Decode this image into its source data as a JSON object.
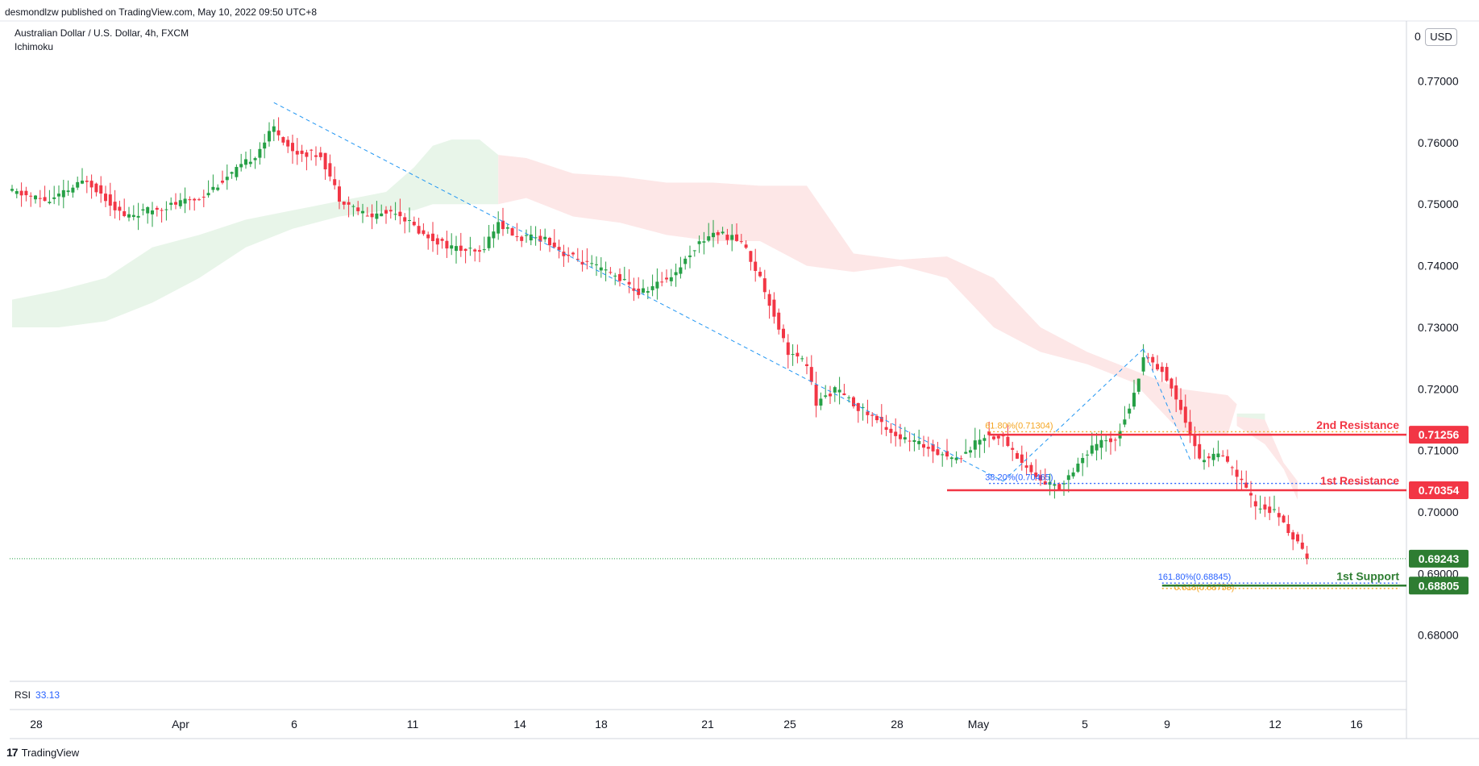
{
  "header": {
    "published_by": "desmondlzw published on TradingView.com, May 10, 2022 09:50 UTC+8"
  },
  "legend": {
    "symbol": "Australian Dollar / U.S. Dollar, 4h, FXCM",
    "indicator": "Ichimoku"
  },
  "currency_button": "USD",
  "top_axis_clip": "0",
  "rsi": {
    "label": "RSI",
    "value": "33.13"
  },
  "brand": {
    "label": "TradingView"
  },
  "colors": {
    "bull": "#26a046",
    "bear": "#f23645",
    "resistance": "#f23645",
    "support": "#2e7d32",
    "fib_blue": "#2962ff",
    "fib_orange": "#f5a623",
    "cloud_bull": "#e8f5e9",
    "cloud_bear": "#fde7e7",
    "trend": "#2196f3"
  },
  "chart_data": {
    "type": "candlestick",
    "title": "Australian Dollar / U.S. Dollar, 4h, FXCM",
    "ylim": [
      0.6725,
      0.7795
    ],
    "y_ticks": [
      "0.77000",
      "0.76000",
      "0.75000",
      "0.74000",
      "0.73000",
      "0.72000",
      "0.71000",
      "0.70000",
      "0.69000",
      "0.68000"
    ],
    "x_ticks": [
      "28",
      "Apr",
      "6",
      "11",
      "14",
      "18",
      "21",
      "25",
      "28",
      "May",
      "5",
      "9",
      "12",
      "16"
    ],
    "price_path": [
      [
        0,
        0.752
      ],
      [
        8,
        0.7505
      ],
      [
        16,
        0.754
      ],
      [
        24,
        0.748
      ],
      [
        32,
        0.7495
      ],
      [
        40,
        0.751
      ],
      [
        48,
        0.7555
      ],
      [
        52,
        0.758
      ],
      [
        56,
        0.7625
      ],
      [
        60,
        0.7585
      ],
      [
        66,
        0.758
      ],
      [
        70,
        0.751
      ],
      [
        76,
        0.748
      ],
      [
        82,
        0.749
      ],
      [
        88,
        0.745
      ],
      [
        94,
        0.743
      ],
      [
        100,
        0.742
      ],
      [
        104,
        0.747
      ],
      [
        108,
        0.7445
      ],
      [
        114,
        0.7445
      ],
      [
        118,
        0.742
      ],
      [
        124,
        0.74
      ],
      [
        130,
        0.738
      ],
      [
        134,
        0.7355
      ],
      [
        138,
        0.737
      ],
      [
        142,
        0.739
      ],
      [
        146,
        0.743
      ],
      [
        150,
        0.7455
      ],
      [
        156,
        0.744
      ],
      [
        160,
        0.738
      ],
      [
        166,
        0.726
      ],
      [
        170,
        0.724
      ],
      [
        172,
        0.7175
      ],
      [
        176,
        0.72
      ],
      [
        180,
        0.7175
      ],
      [
        184,
        0.7155
      ],
      [
        190,
        0.712
      ],
      [
        196,
        0.7105
      ],
      [
        202,
        0.7085
      ],
      [
        208,
        0.7125
      ],
      [
        212,
        0.712
      ],
      [
        216,
        0.708
      ],
      [
        220,
        0.705
      ],
      [
        224,
        0.704
      ],
      [
        228,
        0.708
      ],
      [
        232,
        0.711
      ],
      [
        236,
        0.712
      ],
      [
        240,
        0.719
      ],
      [
        242,
        0.7255
      ],
      [
        246,
        0.723
      ],
      [
        250,
        0.717
      ],
      [
        254,
        0.7085
      ],
      [
        258,
        0.7095
      ],
      [
        262,
        0.706
      ],
      [
        266,
        0.701
      ],
      [
        270,
        0.7
      ],
      [
        274,
        0.696
      ],
      [
        277,
        0.6924
      ]
    ],
    "ichimoku_cloud": {
      "bullish": {
        "x": [
          0,
          10,
          20,
          30,
          40,
          50,
          60,
          70,
          80,
          86,
          90,
          94,
          100,
          104
        ],
        "top": [
          0.7345,
          0.736,
          0.738,
          0.743,
          0.745,
          0.7475,
          0.749,
          0.7505,
          0.752,
          0.756,
          0.7595,
          0.7605,
          0.7605,
          0.758
        ],
        "bottom": [
          0.73,
          0.73,
          0.731,
          0.734,
          0.738,
          0.743,
          0.746,
          0.748,
          0.749,
          0.749,
          0.75,
          0.75,
          0.75,
          0.75
        ]
      },
      "bearish": {
        "x": [
          104,
          110,
          120,
          130,
          140,
          150,
          160,
          170,
          180,
          190,
          200,
          210,
          220,
          230,
          240,
          250,
          260,
          262
        ],
        "top": [
          0.758,
          0.7575,
          0.755,
          0.7545,
          0.7535,
          0.7535,
          0.753,
          0.753,
          0.742,
          0.741,
          0.7415,
          0.738,
          0.73,
          0.726,
          0.723,
          0.72,
          0.719,
          0.7175
        ],
        "bottom": [
          0.75,
          0.751,
          0.748,
          0.747,
          0.745,
          0.744,
          0.744,
          0.74,
          0.739,
          0.74,
          0.738,
          0.73,
          0.726,
          0.724,
          0.721,
          0.713,
          0.7125,
          0.7175
        ]
      },
      "tail_bull": {
        "x": [
          262,
          268
        ],
        "top": [
          0.716,
          0.716
        ],
        "bottom": [
          0.7145,
          0.715
        ]
      },
      "tail_bear": {
        "x": [
          262,
          268,
          272,
          275
        ],
        "top": [
          0.7155,
          0.715,
          0.708,
          0.705
        ],
        "bottom": [
          0.714,
          0.711,
          0.707,
          0.702
        ]
      }
    },
    "trendlines": [
      {
        "from": [
          56,
          0.7665
        ],
        "to": [
          212,
          0.705
        ]
      },
      {
        "from": [
          212,
          0.705
        ],
        "to": [
          242,
          0.7265
        ]
      },
      {
        "from": [
          242,
          0.7265
        ],
        "to": [
          252,
          0.7085
        ]
      }
    ],
    "levels": {
      "resistance_2": {
        "label": "2nd Resistance",
        "value": 0.71256,
        "tag": "0.71256",
        "x_start": 209
      },
      "resistance_1": {
        "label": "1st Resistance",
        "value": 0.70354,
        "tag": "0.70354",
        "x_start": 200
      },
      "support_1": {
        "label": "1st Support",
        "value": 0.68805,
        "tag": "0.68805",
        "x_start": 246
      },
      "last_price": {
        "value": 0.69243,
        "tag": "0.69243"
      }
    },
    "fib_labels": [
      {
        "text": "61.80%(0.71304)",
        "value": 0.71304,
        "color": "orange"
      },
      {
        "text": "38.20%(0.70465)",
        "value": 0.70465,
        "color": "blue"
      },
      {
        "text": "161.80%(0.68845)",
        "value": 0.68845,
        "color": "blue"
      },
      {
        "text": "0.618(0.68759)",
        "value": 0.68759,
        "color": "orange"
      }
    ]
  }
}
